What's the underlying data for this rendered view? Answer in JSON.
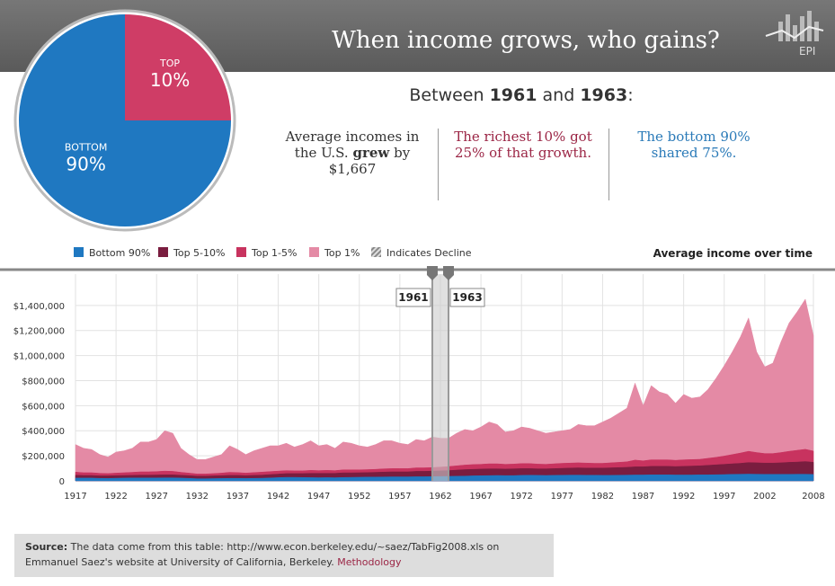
{
  "header": {
    "title": "When income grows, who gains?",
    "logo": "EPI"
  },
  "summary": {
    "heading": [
      "Between",
      "1961",
      "and",
      "1963",
      ":"
    ],
    "columns": [
      [
        "Average incomes in the U.S.",
        "grew",
        "by $1,667"
      ],
      [
        "The richest 10% got 25% of that growth."
      ],
      [
        "The bottom 90% shared 75%."
      ]
    ]
  },
  "source": {
    "label": "Source:",
    "text": "The data come from this table: http://www.econ.berkeley.edu/~saez/TabFig2008.xls on Emmanuel Saez's website at University of California, Berkeley.",
    "link": "Methodology"
  },
  "chart_data": [
    {
      "type": "pie",
      "labels": [
        [
          "TOP",
          "10%"
        ],
        [
          "BOTTOM",
          "90%"
        ]
      ],
      "values": [
        25,
        75
      ],
      "colors": [
        "#cf3d66",
        "#1f78c1"
      ]
    },
    {
      "type": "area",
      "title": "Average income over time",
      "decline_label": "Indicates Decline",
      "selection": [
        1961,
        1963
      ],
      "x": [
        1917,
        1918,
        1919,
        1920,
        1921,
        1922,
        1923,
        1924,
        1925,
        1926,
        1927,
        1928,
        1929,
        1930,
        1931,
        1932,
        1933,
        1934,
        1935,
        1936,
        1937,
        1938,
        1939,
        1940,
        1941,
        1942,
        1943,
        1944,
        1945,
        1946,
        1947,
        1948,
        1949,
        1950,
        1951,
        1952,
        1953,
        1954,
        1955,
        1956,
        1957,
        1958,
        1959,
        1960,
        1961,
        1962,
        1963,
        1964,
        1965,
        1966,
        1967,
        1968,
        1969,
        1970,
        1971,
        1972,
        1973,
        1974,
        1975,
        1976,
        1977,
        1978,
        1979,
        1980,
        1981,
        1982,
        1983,
        1984,
        1985,
        1986,
        1987,
        1988,
        1989,
        1990,
        1991,
        1992,
        1993,
        1994,
        1995,
        1996,
        1997,
        1998,
        1999,
        2000,
        2001,
        2002,
        2003,
        2004,
        2005,
        2006,
        2007,
        2008
      ],
      "xlim": [
        1917,
        2008
      ],
      "xticks": [
        1917,
        1922,
        1927,
        1932,
        1937,
        1942,
        1947,
        1952,
        1957,
        1962,
        1967,
        1972,
        1977,
        1982,
        1987,
        1992,
        1997,
        2002,
        2008
      ],
      "ylim": [
        0,
        1650000
      ],
      "yticks": [
        0,
        {
          "value": 200000,
          "label": "$200,000"
        },
        {
          "value": 400000,
          "label": "$400,000"
        },
        {
          "value": 600000,
          "label": "$600,000"
        },
        {
          "value": 800000,
          "label": "$800,000"
        },
        {
          "value": 1000000,
          "label": "$1,000,000"
        },
        {
          "value": 1200000,
          "label": "$1,200,000"
        },
        {
          "value": 1400000,
          "label": "$1,400,000"
        }
      ],
      "grid": true,
      "series": [
        {
          "name": "Bottom 90%",
          "color": "#1f78c1",
          "values": [
            22000,
            22000,
            22000,
            20000,
            19000,
            21000,
            22000,
            23000,
            23000,
            23000,
            23000,
            24000,
            24000,
            22000,
            20000,
            17000,
            17000,
            18000,
            19000,
            20000,
            20000,
            19000,
            20000,
            21000,
            23000,
            26000,
            28000,
            28000,
            27000,
            26000,
            25000,
            26000,
            25000,
            27000,
            28000,
            29000,
            30000,
            30000,
            31000,
            32000,
            32000,
            32000,
            33000,
            33000,
            34000,
            35000,
            36000,
            37000,
            38000,
            40000,
            41000,
            42000,
            43000,
            42000,
            42000,
            44000,
            45000,
            44000,
            43000,
            44000,
            45000,
            46000,
            46000,
            45000,
            45000,
            44000,
            44000,
            45000,
            46000,
            47000,
            47000,
            48000,
            48000,
            48000,
            47000,
            47000,
            47000,
            48000,
            48000,
            49000,
            50000,
            52000,
            53000,
            54000,
            53000,
            52000,
            52000,
            52000,
            52000,
            53000,
            53000,
            51000
          ]
        },
        {
          "name": "Top 5-10%",
          "color": "#7a1d3f",
          "values": [
            45000,
            43000,
            43000,
            40000,
            40000,
            42000,
            43000,
            44000,
            46000,
            46000,
            47000,
            48000,
            48000,
            45000,
            42000,
            38000,
            38000,
            40000,
            42000,
            44000,
            44000,
            42000,
            44000,
            46000,
            50000,
            54000,
            58000,
            58000,
            58000,
            60000,
            60000,
            60000,
            60000,
            64000,
            64000,
            65000,
            66000,
            68000,
            70000,
            72000,
            72000,
            72000,
            76000,
            76000,
            78000,
            80000,
            82000,
            86000,
            90000,
            92000,
            94000,
            96000,
            96000,
            94000,
            96000,
            98000,
            98000,
            96000,
            96000,
            98000,
            100000,
            102000,
            104000,
            102000,
            102000,
            102000,
            104000,
            106000,
            108000,
            112000,
            112000,
            116000,
            116000,
            116000,
            114000,
            116000,
            118000,
            120000,
            124000,
            128000,
            132000,
            136000,
            140000,
            146000,
            144000,
            142000,
            142000,
            144000,
            148000,
            150000,
            154000,
            148000
          ]
        },
        {
          "name": "Top 1-5%",
          "color": "#c8335f",
          "values": [
            70000,
            65000,
            65000,
            60000,
            58000,
            62000,
            65000,
            68000,
            72000,
            72000,
            74000,
            78000,
            76000,
            68000,
            62000,
            55000,
            55000,
            58000,
            62000,
            68000,
            66000,
            62000,
            66000,
            70000,
            74000,
            78000,
            82000,
            80000,
            80000,
            84000,
            82000,
            84000,
            82000,
            88000,
            88000,
            88000,
            90000,
            92000,
            96000,
            98000,
            98000,
            98000,
            104000,
            104000,
            106000,
            110000,
            114000,
            120000,
            126000,
            130000,
            132000,
            136000,
            136000,
            132000,
            134000,
            138000,
            138000,
            134000,
            132000,
            136000,
            140000,
            142000,
            144000,
            142000,
            140000,
            140000,
            144000,
            148000,
            152000,
            166000,
            160000,
            168000,
            168000,
            168000,
            164000,
            168000,
            170000,
            172000,
            180000,
            188000,
            198000,
            210000,
            222000,
            236000,
            226000,
            218000,
            218000,
            226000,
            236000,
            244000,
            252000,
            238000
          ]
        },
        {
          "name": "Top 1%",
          "color": "#e48aa5",
          "values": [
            290000,
            260000,
            250000,
            210000,
            190000,
            230000,
            240000,
            260000,
            310000,
            310000,
            330000,
            400000,
            380000,
            260000,
            210000,
            170000,
            170000,
            190000,
            210000,
            280000,
            250000,
            210000,
            240000,
            260000,
            280000,
            280000,
            300000,
            270000,
            290000,
            320000,
            280000,
            290000,
            260000,
            310000,
            300000,
            280000,
            270000,
            290000,
            320000,
            320000,
            300000,
            290000,
            330000,
            320000,
            350000,
            340000,
            340000,
            380000,
            410000,
            400000,
            430000,
            470000,
            450000,
            390000,
            400000,
            430000,
            420000,
            400000,
            380000,
            390000,
            400000,
            410000,
            450000,
            440000,
            440000,
            470000,
            500000,
            540000,
            580000,
            780000,
            600000,
            760000,
            710000,
            690000,
            620000,
            690000,
            660000,
            670000,
            730000,
            820000,
            920000,
            1030000,
            1150000,
            1300000,
            1030000,
            910000,
            940000,
            1110000,
            1260000,
            1350000,
            1450000,
            1160000
          ]
        }
      ]
    }
  ]
}
